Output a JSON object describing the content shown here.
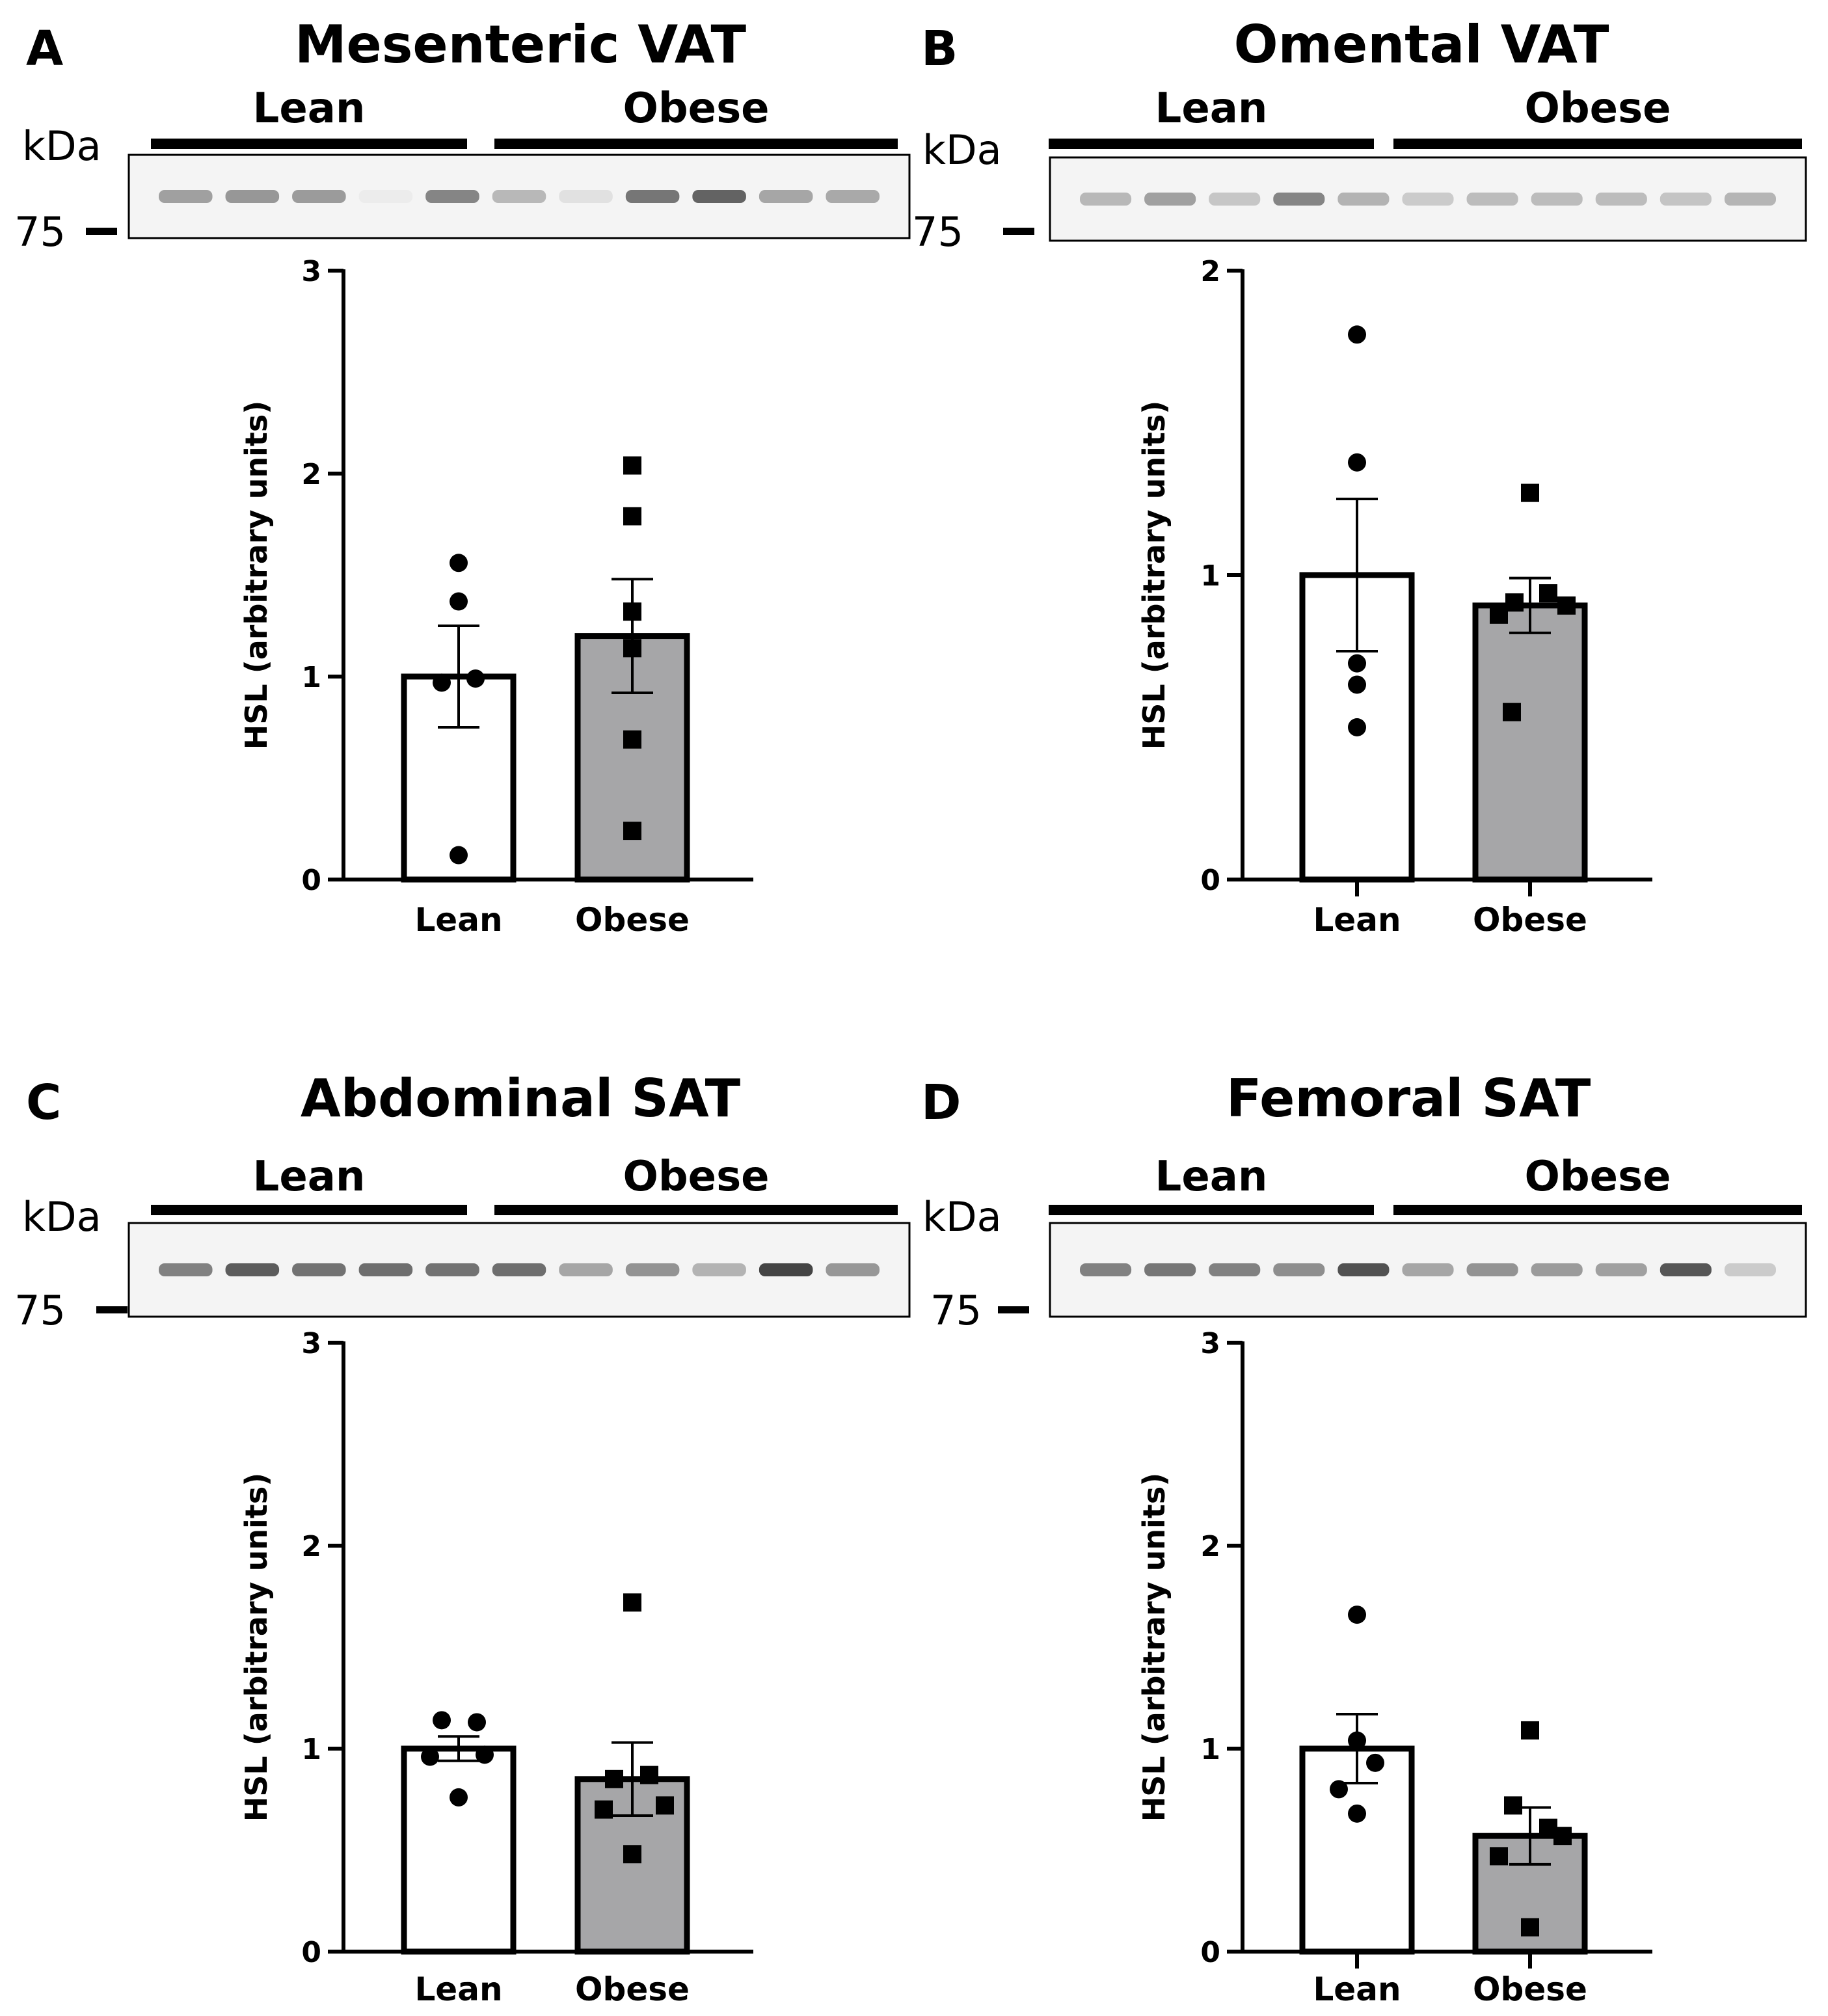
{
  "figure": {
    "background": "#ffffff",
    "lean_fill": "#ffffff",
    "obese_fill": "#a6a6a8",
    "ink": "#000000",
    "blot_band": "#3a3a3a"
  },
  "chart_data": [
    {
      "letter": "A",
      "title": "Mesenteric VAT",
      "type": "bar",
      "blot": {
        "groups": [
          "Lean",
          "Obese"
        ],
        "kda_label": "kDa",
        "marker": "75",
        "lane_intensity": [
          0.45,
          0.5,
          0.48,
          0.04,
          0.6,
          0.32,
          0.1,
          0.68,
          0.78,
          0.42,
          0.4
        ]
      },
      "ylabel": "HSL (arbitrary units)",
      "ylim": [
        0,
        3
      ],
      "yticks": [
        "0",
        "1",
        "2",
        "3"
      ],
      "categories": [
        "Lean",
        "Obese"
      ],
      "series": [
        {
          "name": "Lean",
          "marker": "circle",
          "mean": 1.0,
          "sem": 0.25,
          "points": [
            1.56,
            1.37,
            0.99,
            0.97,
            0.12
          ]
        },
        {
          "name": "Obese",
          "marker": "square",
          "mean": 1.2,
          "sem": 0.28,
          "points": [
            2.04,
            1.79,
            1.32,
            1.14,
            0.69,
            0.24
          ]
        }
      ]
    },
    {
      "letter": "B",
      "title": "Omental VAT",
      "type": "bar",
      "blot": {
        "groups": [
          "Lean",
          "Obese"
        ],
        "kda_label": "kDa",
        "marker": "75",
        "lane_intensity": [
          0.32,
          0.45,
          0.25,
          0.6,
          0.35,
          0.22,
          0.3,
          0.3,
          0.3,
          0.26,
          0.34
        ]
      },
      "ylabel": "HSL (arbitrary units)",
      "ylim": [
        0,
        2
      ],
      "yticks": [
        "0",
        "1",
        "2"
      ],
      "categories": [
        "Lean",
        "Obese"
      ],
      "series": [
        {
          "name": "Lean",
          "marker": "circle",
          "mean": 1.0,
          "sem": 0.25,
          "points": [
            1.79,
            1.37,
            0.71,
            0.64,
            0.5
          ]
        },
        {
          "name": "Obese",
          "marker": "square",
          "mean": 0.9,
          "sem": 0.09,
          "points": [
            1.27,
            0.94,
            0.91,
            0.9,
            0.87,
            0.55
          ]
        }
      ]
    },
    {
      "letter": "C",
      "title": "Abdominal SAT",
      "type": "bar",
      "blot": {
        "groups": [
          "Lean",
          "Obese"
        ],
        "kda_label": "kDa",
        "marker": "75",
        "lane_intensity": [
          0.62,
          0.82,
          0.7,
          0.72,
          0.7,
          0.72,
          0.42,
          0.52,
          0.35,
          0.95,
          0.5
        ]
      },
      "ylabel": "HSL (arbitrary units)",
      "ylim": [
        0,
        3
      ],
      "yticks": [
        "0",
        "1",
        "2",
        "3"
      ],
      "categories": [
        "Lean",
        "Obese"
      ],
      "series": [
        {
          "name": "Lean",
          "marker": "circle",
          "mean": 1.0,
          "sem": 0.06,
          "points": [
            1.14,
            1.13,
            0.97,
            0.96,
            0.76
          ]
        },
        {
          "name": "Obese",
          "marker": "square",
          "mean": 0.85,
          "sem": 0.18,
          "points": [
            1.72,
            0.87,
            0.85,
            0.72,
            0.7,
            0.48
          ]
        }
      ]
    },
    {
      "letter": "D",
      "title": "Femoral SAT",
      "type": "bar",
      "blot": {
        "groups": [
          "Lean",
          "Obese"
        ],
        "kda_label": "kDa",
        "marker": "75",
        "lane_intensity": [
          0.62,
          0.68,
          0.62,
          0.55,
          0.88,
          0.42,
          0.52,
          0.48,
          0.45,
          0.85,
          0.22
        ]
      },
      "ylabel": "HSL (arbitrary units)",
      "ylim": [
        0,
        3
      ],
      "yticks": [
        "0",
        "1",
        "2",
        "3"
      ],
      "categories": [
        "Lean",
        "Obese"
      ],
      "series": [
        {
          "name": "Lean",
          "marker": "circle",
          "mean": 1.0,
          "sem": 0.17,
          "points": [
            1.66,
            1.04,
            0.93,
            0.8,
            0.68
          ]
        },
        {
          "name": "Obese",
          "marker": "square",
          "mean": 0.57,
          "sem": 0.14,
          "points": [
            1.09,
            0.72,
            0.61,
            0.57,
            0.47,
            0.12
          ]
        }
      ]
    }
  ]
}
